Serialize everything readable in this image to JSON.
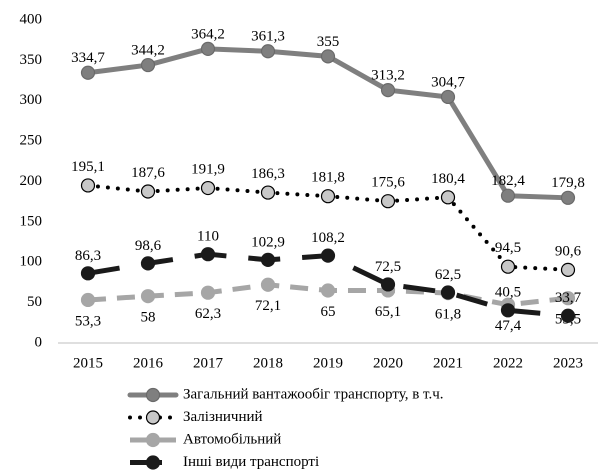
{
  "chart_data": {
    "type": "line",
    "categories": [
      "2015",
      "2016",
      "2017",
      "2018",
      "2019",
      "2020",
      "2021",
      "2022",
      "2023"
    ],
    "ylim": [
      0,
      400
    ],
    "yticks": [
      0,
      50,
      100,
      150,
      200,
      250,
      300,
      350,
      400
    ],
    "legend": "bottom",
    "series": [
      {
        "name": "Загальний вантажообіг транспорту, в т.ч.",
        "color": "#7f7f7f",
        "values": [
          334.7,
          344.2,
          364.2,
          361.3,
          355,
          313.2,
          304.7,
          182.4,
          179.8
        ],
        "value_labels": [
          "334,7",
          "344,2",
          "364,2",
          "361,3",
          "355",
          "313,2",
          "304,7",
          "182,4",
          "179,8"
        ]
      },
      {
        "name": "Залізничний",
        "color": "#000000",
        "values": [
          195.1,
          187.6,
          191.9,
          186.3,
          181.8,
          175.6,
          180.4,
          94.5,
          90.6
        ],
        "value_labels": [
          "195,1",
          "187,6",
          "191,9",
          "186,3",
          "181,8",
          "175,6",
          "180,4",
          "94,5",
          "90,6"
        ]
      },
      {
        "name": "Автомобільний",
        "color": "#a6a6a6",
        "values": [
          53.3,
          58,
          62.3,
          72.1,
          65,
          65.1,
          61.8,
          47.4,
          55.5
        ],
        "value_labels": [
          "53,3",
          "58",
          "62,3",
          "72,1",
          "65",
          "65,1",
          "61,8",
          "47,4",
          "55,5"
        ]
      },
      {
        "name": "Інші види транспорті",
        "color": "#1a1a1a",
        "values": [
          86.3,
          98.6,
          110,
          102.9,
          108.2,
          72.5,
          62.5,
          40.5,
          33.7
        ],
        "value_labels": [
          "86,3",
          "98,6",
          "110",
          "102,9",
          "108,2",
          "72,5",
          "62,5",
          "40,5",
          "33,7"
        ]
      }
    ]
  }
}
